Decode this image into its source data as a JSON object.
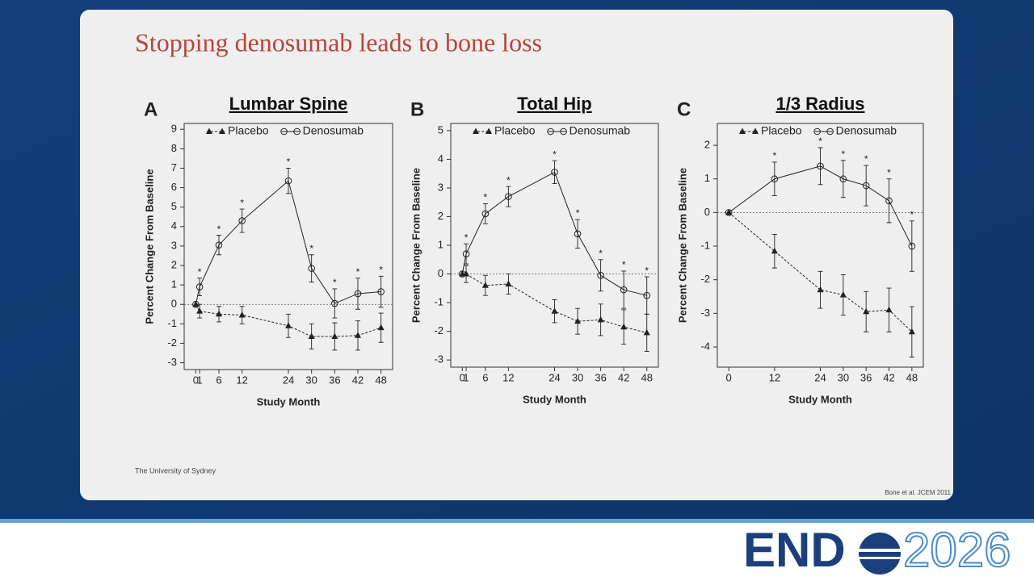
{
  "slide": {
    "title": "Stopping denosumab leads to bone loss",
    "footer_left": "The University of Sydney",
    "citation": "Bone et al. JCEM 2011",
    "logo_bold": "END",
    "logo_year": "2026"
  },
  "chart_data": [
    {
      "type": "line",
      "panel": "A",
      "title": "Lumbar Spine",
      "x_label": "Study Month",
      "y_label": "Percent Change From Baseline",
      "x": [
        0,
        1,
        6,
        12,
        24,
        30,
        36,
        42,
        48
      ],
      "series": [
        {
          "name": "Placebo",
          "color": "#222222",
          "line_style": "dashed",
          "marker": "triangle",
          "values": [
            0,
            -0.35,
            -0.5,
            -0.55,
            -1.1,
            -1.65,
            -1.65,
            -1.6,
            -1.2
          ],
          "errors": [
            0,
            0.35,
            0.4,
            0.45,
            0.6,
            0.65,
            0.7,
            0.75,
            0.75
          ]
        },
        {
          "name": "Denosumab",
          "color": "#222222",
          "line_style": "solid",
          "marker": "circle",
          "values": [
            0,
            0.9,
            3.05,
            4.3,
            6.35,
            1.85,
            0.05,
            0.55,
            0.65
          ],
          "errors": [
            0,
            0.45,
            0.5,
            0.6,
            0.65,
            0.7,
            0.75,
            0.8,
            0.8
          ],
          "annotations": [
            null,
            "*",
            "*",
            "*",
            "*",
            "*",
            "*",
            "*",
            "*"
          ]
        }
      ],
      "xlim": [
        -3,
        51
      ],
      "xticks": [
        0,
        1,
        6,
        12,
        24,
        30,
        36,
        42,
        48
      ],
      "ylim": [
        -3.35,
        9.3
      ],
      "yticks": [
        -3,
        -2,
        -1,
        0,
        1,
        2,
        3,
        4,
        5,
        6,
        7,
        8,
        9
      ],
      "reference_line": 0
    },
    {
      "type": "line",
      "panel": "B",
      "title": "Total Hip",
      "x_label": "Study Month",
      "y_label": "Percent Change From Baseline",
      "x": [
        0,
        1,
        6,
        12,
        24,
        30,
        36,
        42,
        48
      ],
      "series": [
        {
          "name": "Placebo",
          "color": "#222222",
          "line_style": "dashed",
          "marker": "triangle",
          "values": [
            0,
            0,
            -0.4,
            -0.35,
            -1.3,
            -1.65,
            -1.6,
            -1.85,
            -2.05
          ],
          "errors": [
            0,
            0.3,
            0.35,
            0.35,
            0.4,
            0.45,
            0.55,
            0.6,
            0.65
          ]
        },
        {
          "name": "Denosumab",
          "color": "#222222",
          "line_style": "solid",
          "marker": "circle",
          "values": [
            0,
            0.7,
            2.1,
            2.7,
            3.55,
            1.4,
            -0.05,
            -0.55,
            -0.75
          ],
          "errors": [
            0,
            0.35,
            0.35,
            0.35,
            0.4,
            0.5,
            0.55,
            0.65,
            0.65
          ],
          "annotations": [
            null,
            "*",
            "*",
            "*",
            "*",
            "*",
            "*",
            "*",
            "*"
          ]
        }
      ],
      "xlim": [
        -3,
        51
      ],
      "xticks": [
        0,
        1,
        6,
        12,
        24,
        30,
        36,
        42,
        48
      ],
      "ylim": [
        -3.25,
        5.25
      ],
      "yticks": [
        -3,
        -2,
        -1,
        0,
        1,
        2,
        3,
        4,
        5
      ],
      "reference_line": 0
    },
    {
      "type": "line",
      "panel": "C",
      "title": "1/3 Radius",
      "x_label": "Study Month",
      "y_label": "Percent Change From Baseline",
      "x": [
        0,
        12,
        24,
        30,
        36,
        42,
        48
      ],
      "series": [
        {
          "name": "Placebo",
          "color": "#222222",
          "line_style": "dashed",
          "marker": "triangle",
          "values": [
            0,
            -1.15,
            -2.3,
            -2.45,
            -2.95,
            -2.9,
            -3.55
          ],
          "errors": [
            0,
            0.5,
            0.55,
            0.6,
            0.6,
            0.65,
            0.75
          ]
        },
        {
          "name": "Denosumab",
          "color": "#222222",
          "line_style": "solid",
          "marker": "circle",
          "values": [
            0,
            1.0,
            1.38,
            1.0,
            0.8,
            0.35,
            -1.0
          ],
          "errors": [
            0,
            0.5,
            0.55,
            0.55,
            0.6,
            0.65,
            0.75
          ],
          "annotations": [
            null,
            "*",
            "*",
            "*",
            "*",
            "*",
            "*"
          ]
        }
      ],
      "xlim": [
        -3,
        51
      ],
      "xticks": [
        0,
        12,
        24,
        30,
        36,
        42,
        48
      ],
      "ylim": [
        -4.6,
        2.65
      ],
      "yticks": [
        -4,
        -3,
        -2,
        -1,
        0,
        1,
        2
      ],
      "reference_line": 0
    }
  ]
}
